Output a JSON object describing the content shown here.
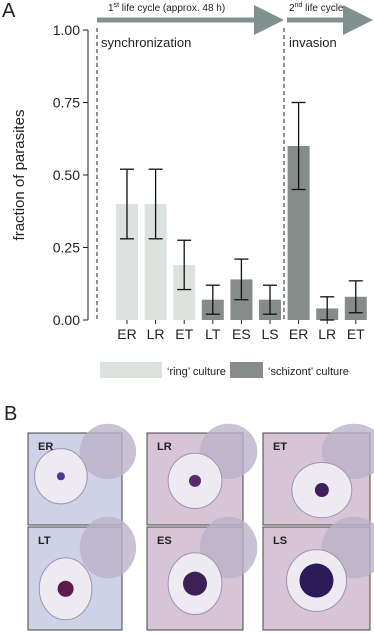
{
  "chart_data": {
    "type": "bar",
    "panel_label": "A",
    "y_label": "fraction of parasites",
    "categories": [
      "ER",
      "LR",
      "ET",
      "LT",
      "ES",
      "LS",
      "ER",
      "LR",
      "ET"
    ],
    "series": [
      {
        "name": "‘ring’ culture",
        "color": "#dde2df",
        "values": [
          0.4,
          0.4,
          0.19,
          null,
          null,
          null,
          null,
          null,
          null
        ],
        "errors": [
          0.12,
          0.12,
          0.085,
          null,
          null,
          null,
          null,
          null,
          null
        ]
      },
      {
        "name": "‘schizont’ culture",
        "color": "#868c89",
        "values": [
          null,
          null,
          null,
          0.07,
          0.14,
          0.07,
          0.6,
          0.04,
          0.08
        ],
        "errors": [
          null,
          null,
          null,
          0.05,
          0.07,
          0.05,
          0.15,
          0.04,
          0.055
        ]
      }
    ],
    "ylim": [
      0,
      1
    ],
    "yticks": [
      {
        "value": 0,
        "label": "0.00"
      },
      {
        "value": 0.25,
        "label": "0.25"
      },
      {
        "value": 0.5,
        "label": "0.50"
      },
      {
        "value": 0.75,
        "label": "0.75"
      },
      {
        "value": 1,
        "label": "1.00"
      }
    ],
    "phases": [
      {
        "ordinal": "1",
        "suffix": "st",
        "text": " life cycle (approx. 48 h)",
        "region": "synchronization"
      },
      {
        "ordinal": "2",
        "suffix": "nd",
        "text": " life cycle",
        "region": "invasion"
      }
    ]
  },
  "panel_b": {
    "panel_label": "B",
    "images": [
      "ER",
      "LR",
      "ET",
      "LT",
      "ES",
      "LS"
    ]
  }
}
